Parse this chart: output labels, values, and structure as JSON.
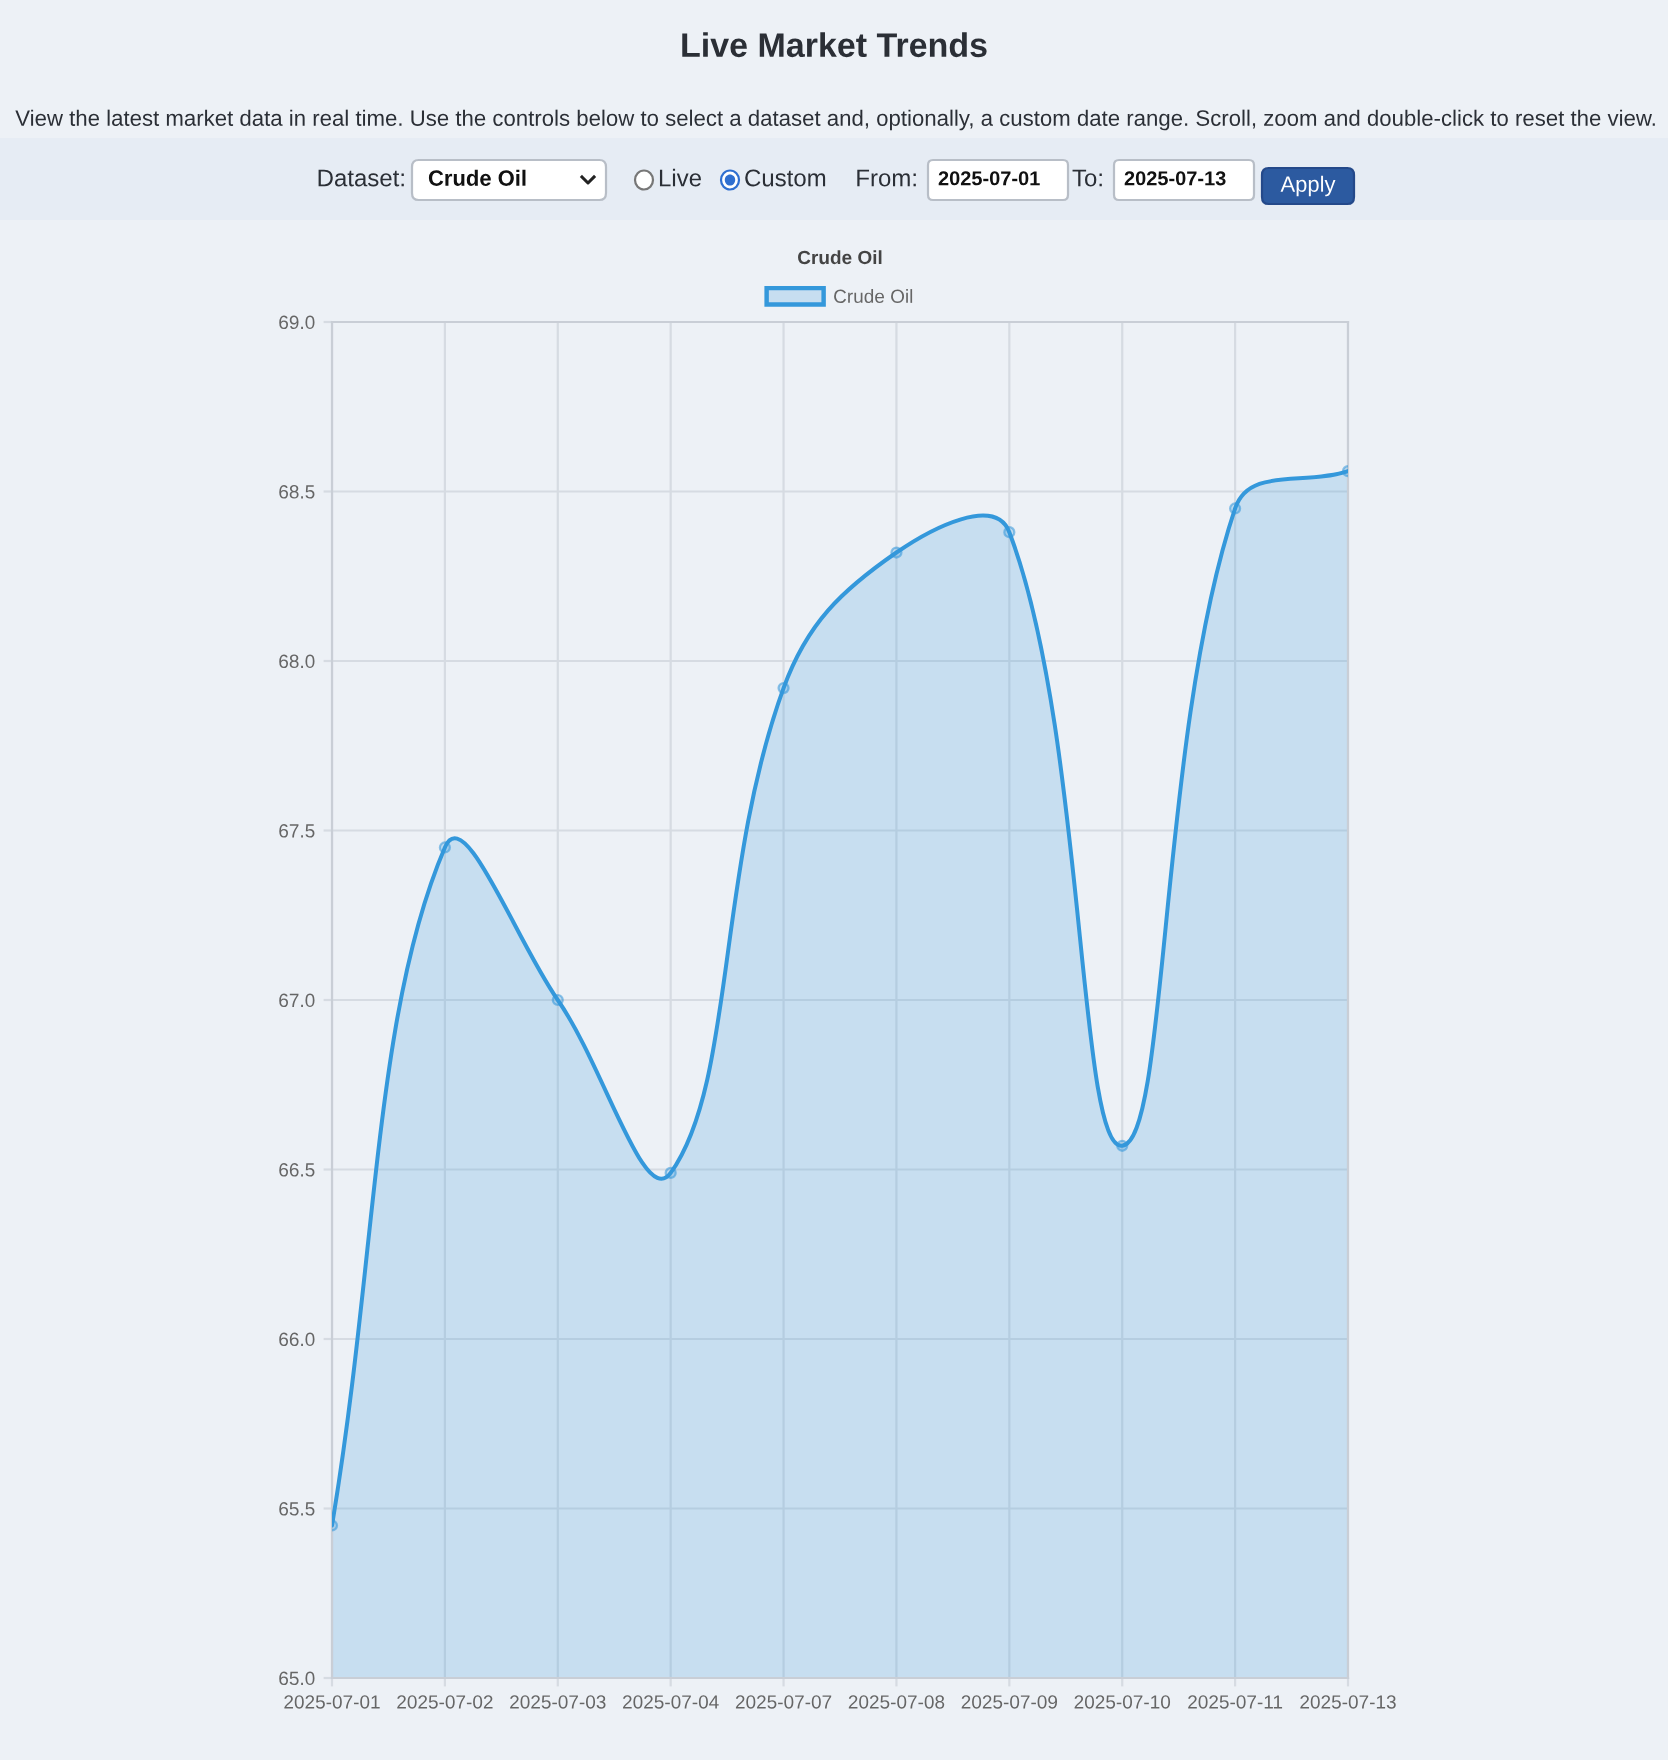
{
  "chart_data": {
    "type": "area",
    "title": "Crude Oil",
    "categories": [
      "2025-07-01",
      "2025-07-02",
      "2025-07-03",
      "2025-07-04",
      "2025-07-07",
      "2025-07-08",
      "2025-07-09",
      "2025-07-10",
      "2025-07-11",
      "2025-07-13"
    ],
    "series": [
      {
        "name": "Crude Oil",
        "color": "#3498db",
        "values": [
          65.45,
          67.45,
          67.0,
          66.49,
          67.92,
          68.32,
          68.38,
          66.57,
          68.45,
          68.56
        ]
      }
    ],
    "ylim": [
      65,
      69
    ],
    "yticks": [
      {
        "value": 65,
        "label": "65.0"
      },
      {
        "value": 65.5,
        "label": "65.5"
      },
      {
        "value": 66,
        "label": "66.0"
      },
      {
        "value": 66.5,
        "label": "66.5"
      },
      {
        "value": 67,
        "label": "67.0"
      },
      {
        "value": 67.5,
        "label": "67.5"
      },
      {
        "value": 68,
        "label": "68.0"
      },
      {
        "value": 68.5,
        "label": "68.5"
      },
      {
        "value": 69,
        "label": "69.0"
      }
    ],
    "grid": true,
    "legend": "top",
    "marker": "circle",
    "line_style": "solid",
    "annotations": [
      "Live Market Trends",
      "View the latest market data in real time. Use the controls below to select a dataset and, optionally, a custom date range. Scroll, zoom and double-click to reset the view.",
      "Dataset:",
      "Crude Oil",
      "Live",
      "Custom",
      "From:",
      "2025-07-01",
      "To:",
      "2025-07-13",
      "Apply"
    ]
  }
}
